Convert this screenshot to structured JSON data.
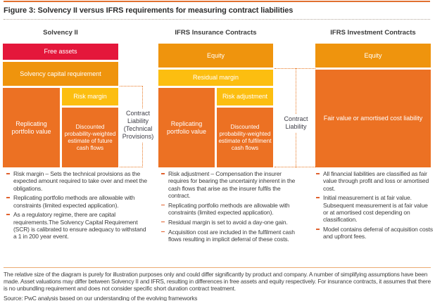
{
  "title": "Figure 3: Solvency II versus IFRS requirements for measuring contract liabilities",
  "colors": {
    "free_assets_red": "#E4173B",
    "equity_orange": "#EF940D",
    "liability_dark_orange": "#EC7123",
    "margin_yellow": "#FCBE10",
    "accent_rule_orange": "#E0702F"
  },
  "columns": [
    {
      "header": "Solvency II",
      "boxes": {
        "top": "Free assets",
        "second": "Solvency capital requirement",
        "left": "Replicating portfolio value",
        "margin": "Risk margin",
        "estimate": "Discounted probability-weighted estimate of future cash flows"
      },
      "bracket": "Contract Liability (Technical Provisions)",
      "bullets": [
        "Risk margin – Sets the technical provisions as the expected amount required to take over and meet the obligations.",
        "Replicating portfolio methods are allowable with constraints (limited expected application).",
        "As a regulatory regime, there are capital requirements.The Solvency Capital Requirement (SCR) is calibrated to ensure adequacy to withstand a 1 in 200 year event."
      ]
    },
    {
      "header": "IFRS Insurance Contracts",
      "boxes": {
        "top": "Equity",
        "second": "Residual margin",
        "left": "Replicating portfolio value",
        "margin": "Risk adjustment",
        "estimate": "Discounted probability-weighted estimate of fulfilment cash flows"
      },
      "bracket": "Contract Liability",
      "bullets": [
        "Risk adjustment – Compensation the insurer requires for bearing the uncertainty inherent in the cash flows that arise as the insurer fulfils the contract.",
        "Replicating portfolio methods are allowable with constraints (limited expected application).",
        "Residual margin is set to avoid a day-one gain.",
        "Acquisition cost are included in the fulfilment cash flows resulting in implicit deferral of these costs."
      ]
    },
    {
      "header": "IFRS Investment Contracts",
      "boxes": {
        "top": "Equity",
        "liability": "Fair value or amortised cost liability"
      },
      "bullets": [
        "All financial liabilities are classified as fair value through profit and loss or amortised cost.",
        "Initial measurement is at fair value. Subsequent measurement is at fair value or at amortised cost depending on classification.",
        "Model contains deferral of acquisition costs and upfront fees."
      ]
    }
  ],
  "footer": {
    "note": "The relative size of the diagram is purely for illustration purposes only and could differ significantly by product and company. A number of simplifying assumptions have been made. Asset valuations may differ between Solvency II and IFRS, resulting in differences in free assets and equity respectively. For insurance contracts, it assumes that there is no unbundling requirement and does not consider specific short duration contract treatment.",
    "source": "Source: PwC analysis based on our understanding of the evolving frameworks"
  }
}
